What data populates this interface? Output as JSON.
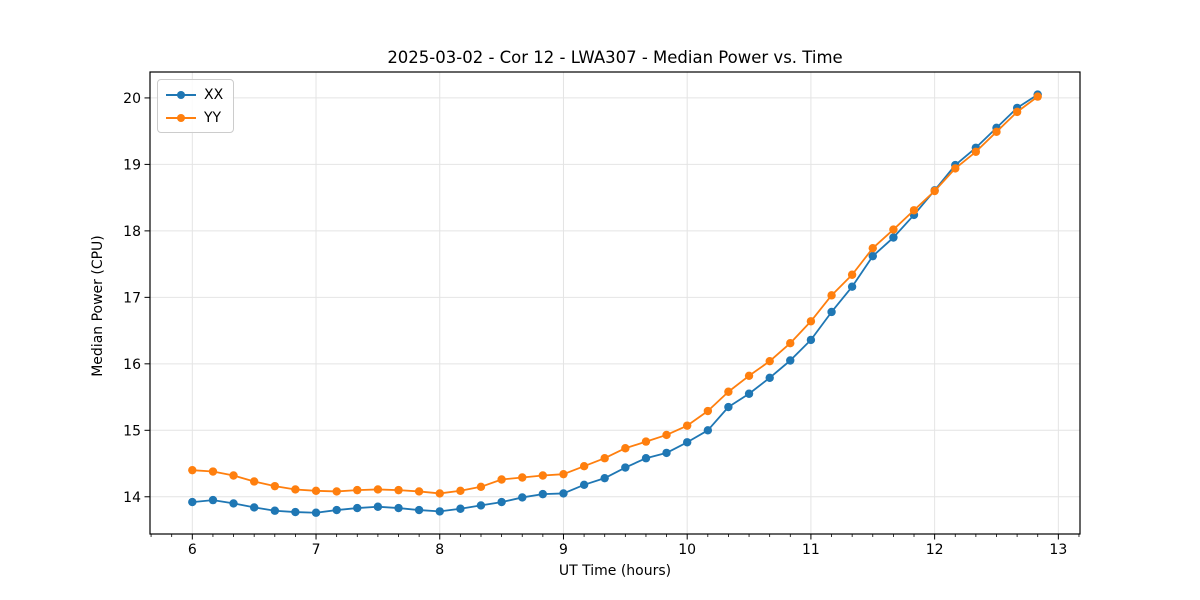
{
  "figure": {
    "title": "2025-03-02 - Cor 12 - LWA307 - Median Power vs. Time",
    "xlabel": "UT Time (hours)",
    "ylabel": "Median Power (CPU)"
  },
  "legend": {
    "position": "upper left",
    "entries": [
      {
        "label": "XX",
        "color": "#1f77b4"
      },
      {
        "label": "YY",
        "color": "#ff7f0e"
      }
    ]
  },
  "colors": {
    "series_xx": "#1f77b4",
    "series_yy": "#ff7f0e",
    "grid": "#e4e4e4",
    "spine": "#000000",
    "tick": "#000000",
    "text": "#000000",
    "background": "#ffffff"
  },
  "chart_data": {
    "type": "line",
    "title": "2025-03-02 - Cor 12 - LWA307 - Median Power vs. Time",
    "xlabel": "UT Time (hours)",
    "ylabel": "Median Power (CPU)",
    "xlim": [
      5.658,
      13.175
    ],
    "ylim": [
      13.44,
      20.39
    ],
    "xticks": [
      6,
      7,
      8,
      9,
      10,
      11,
      12,
      13
    ],
    "yticks": [
      14,
      15,
      16,
      17,
      18,
      19,
      20
    ],
    "x_minor_step": 0.1666667,
    "grid": true,
    "legend_position": "upper left",
    "marker": "o",
    "x": [
      6.0,
      6.167,
      6.333,
      6.5,
      6.667,
      6.833,
      7.0,
      7.167,
      7.333,
      7.5,
      7.667,
      7.833,
      8.0,
      8.167,
      8.333,
      8.5,
      8.667,
      8.833,
      9.0,
      9.167,
      9.333,
      9.5,
      9.667,
      9.833,
      10.0,
      10.167,
      10.333,
      10.5,
      10.667,
      10.833,
      11.0,
      11.167,
      11.333,
      11.5,
      11.667,
      11.833,
      12.0,
      12.167,
      12.333,
      12.5,
      12.667,
      12.833
    ],
    "series": [
      {
        "name": "XX",
        "color": "#1f77b4",
        "values": [
          13.92,
          13.95,
          13.9,
          13.84,
          13.79,
          13.77,
          13.76,
          13.8,
          13.83,
          13.85,
          13.83,
          13.8,
          13.78,
          13.82,
          13.87,
          13.92,
          13.99,
          14.04,
          14.05,
          14.18,
          14.28,
          14.44,
          14.58,
          14.66,
          14.82,
          15.0,
          15.35,
          15.55,
          15.79,
          16.05,
          16.36,
          16.78,
          17.16,
          17.62,
          17.9,
          18.24,
          18.61,
          18.99,
          19.25,
          19.55,
          19.85,
          20.05
        ]
      },
      {
        "name": "YY",
        "color": "#ff7f0e",
        "values": [
          14.4,
          14.38,
          14.32,
          14.23,
          14.16,
          14.11,
          14.09,
          14.08,
          14.1,
          14.11,
          14.1,
          14.08,
          14.05,
          14.09,
          14.15,
          14.26,
          14.29,
          14.32,
          14.34,
          14.46,
          14.58,
          14.73,
          14.83,
          14.93,
          15.07,
          15.29,
          15.58,
          15.82,
          16.04,
          16.31,
          16.64,
          17.03,
          17.34,
          17.74,
          18.02,
          18.31,
          18.6,
          18.94,
          19.19,
          19.49,
          19.79,
          20.02
        ]
      }
    ]
  }
}
